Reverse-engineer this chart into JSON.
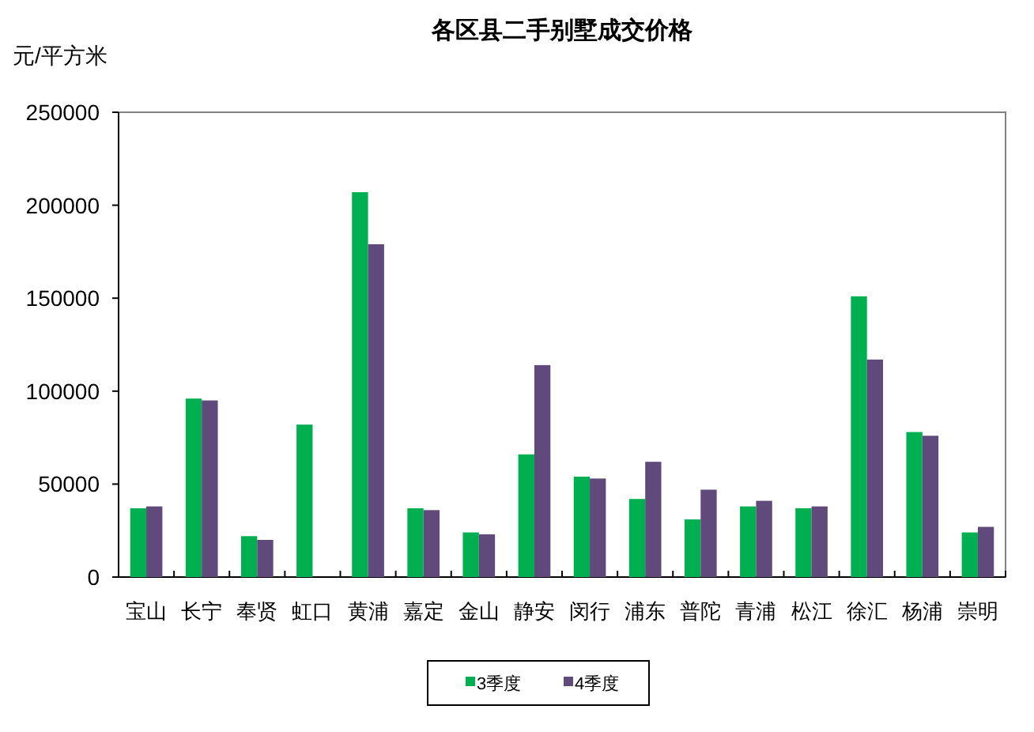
{
  "chart_data": {
    "type": "bar",
    "title": "各区县二手别墅成交价格",
    "ylabel": "元/平方米",
    "categories": [
      "宝山",
      "长宁",
      "奉贤",
      "虹口",
      "黄浦",
      "嘉定",
      "金山",
      "静安",
      "闵行",
      "浦东",
      "普陀",
      "青浦",
      "松江",
      "徐汇",
      "杨浦",
      "崇明"
    ],
    "series": [
      {
        "name": "3季度",
        "color": "#00b050",
        "values": [
          37000,
          96000,
          22000,
          82000,
          207000,
          37000,
          24000,
          66000,
          54000,
          42000,
          31000,
          38000,
          37000,
          151000,
          78000,
          24000
        ]
      },
      {
        "name": "4季度",
        "color": "#604a7b",
        "values": [
          38000,
          95000,
          20000,
          null,
          179000,
          36000,
          23000,
          114000,
          53000,
          62000,
          47000,
          41000,
          38000,
          117000,
          76000,
          27000
        ]
      }
    ],
    "ylim": [
      0,
      250000
    ],
    "yticks": [
      0,
      50000,
      100000,
      150000,
      200000,
      250000
    ],
    "grid": false,
    "legend": "bottom"
  }
}
